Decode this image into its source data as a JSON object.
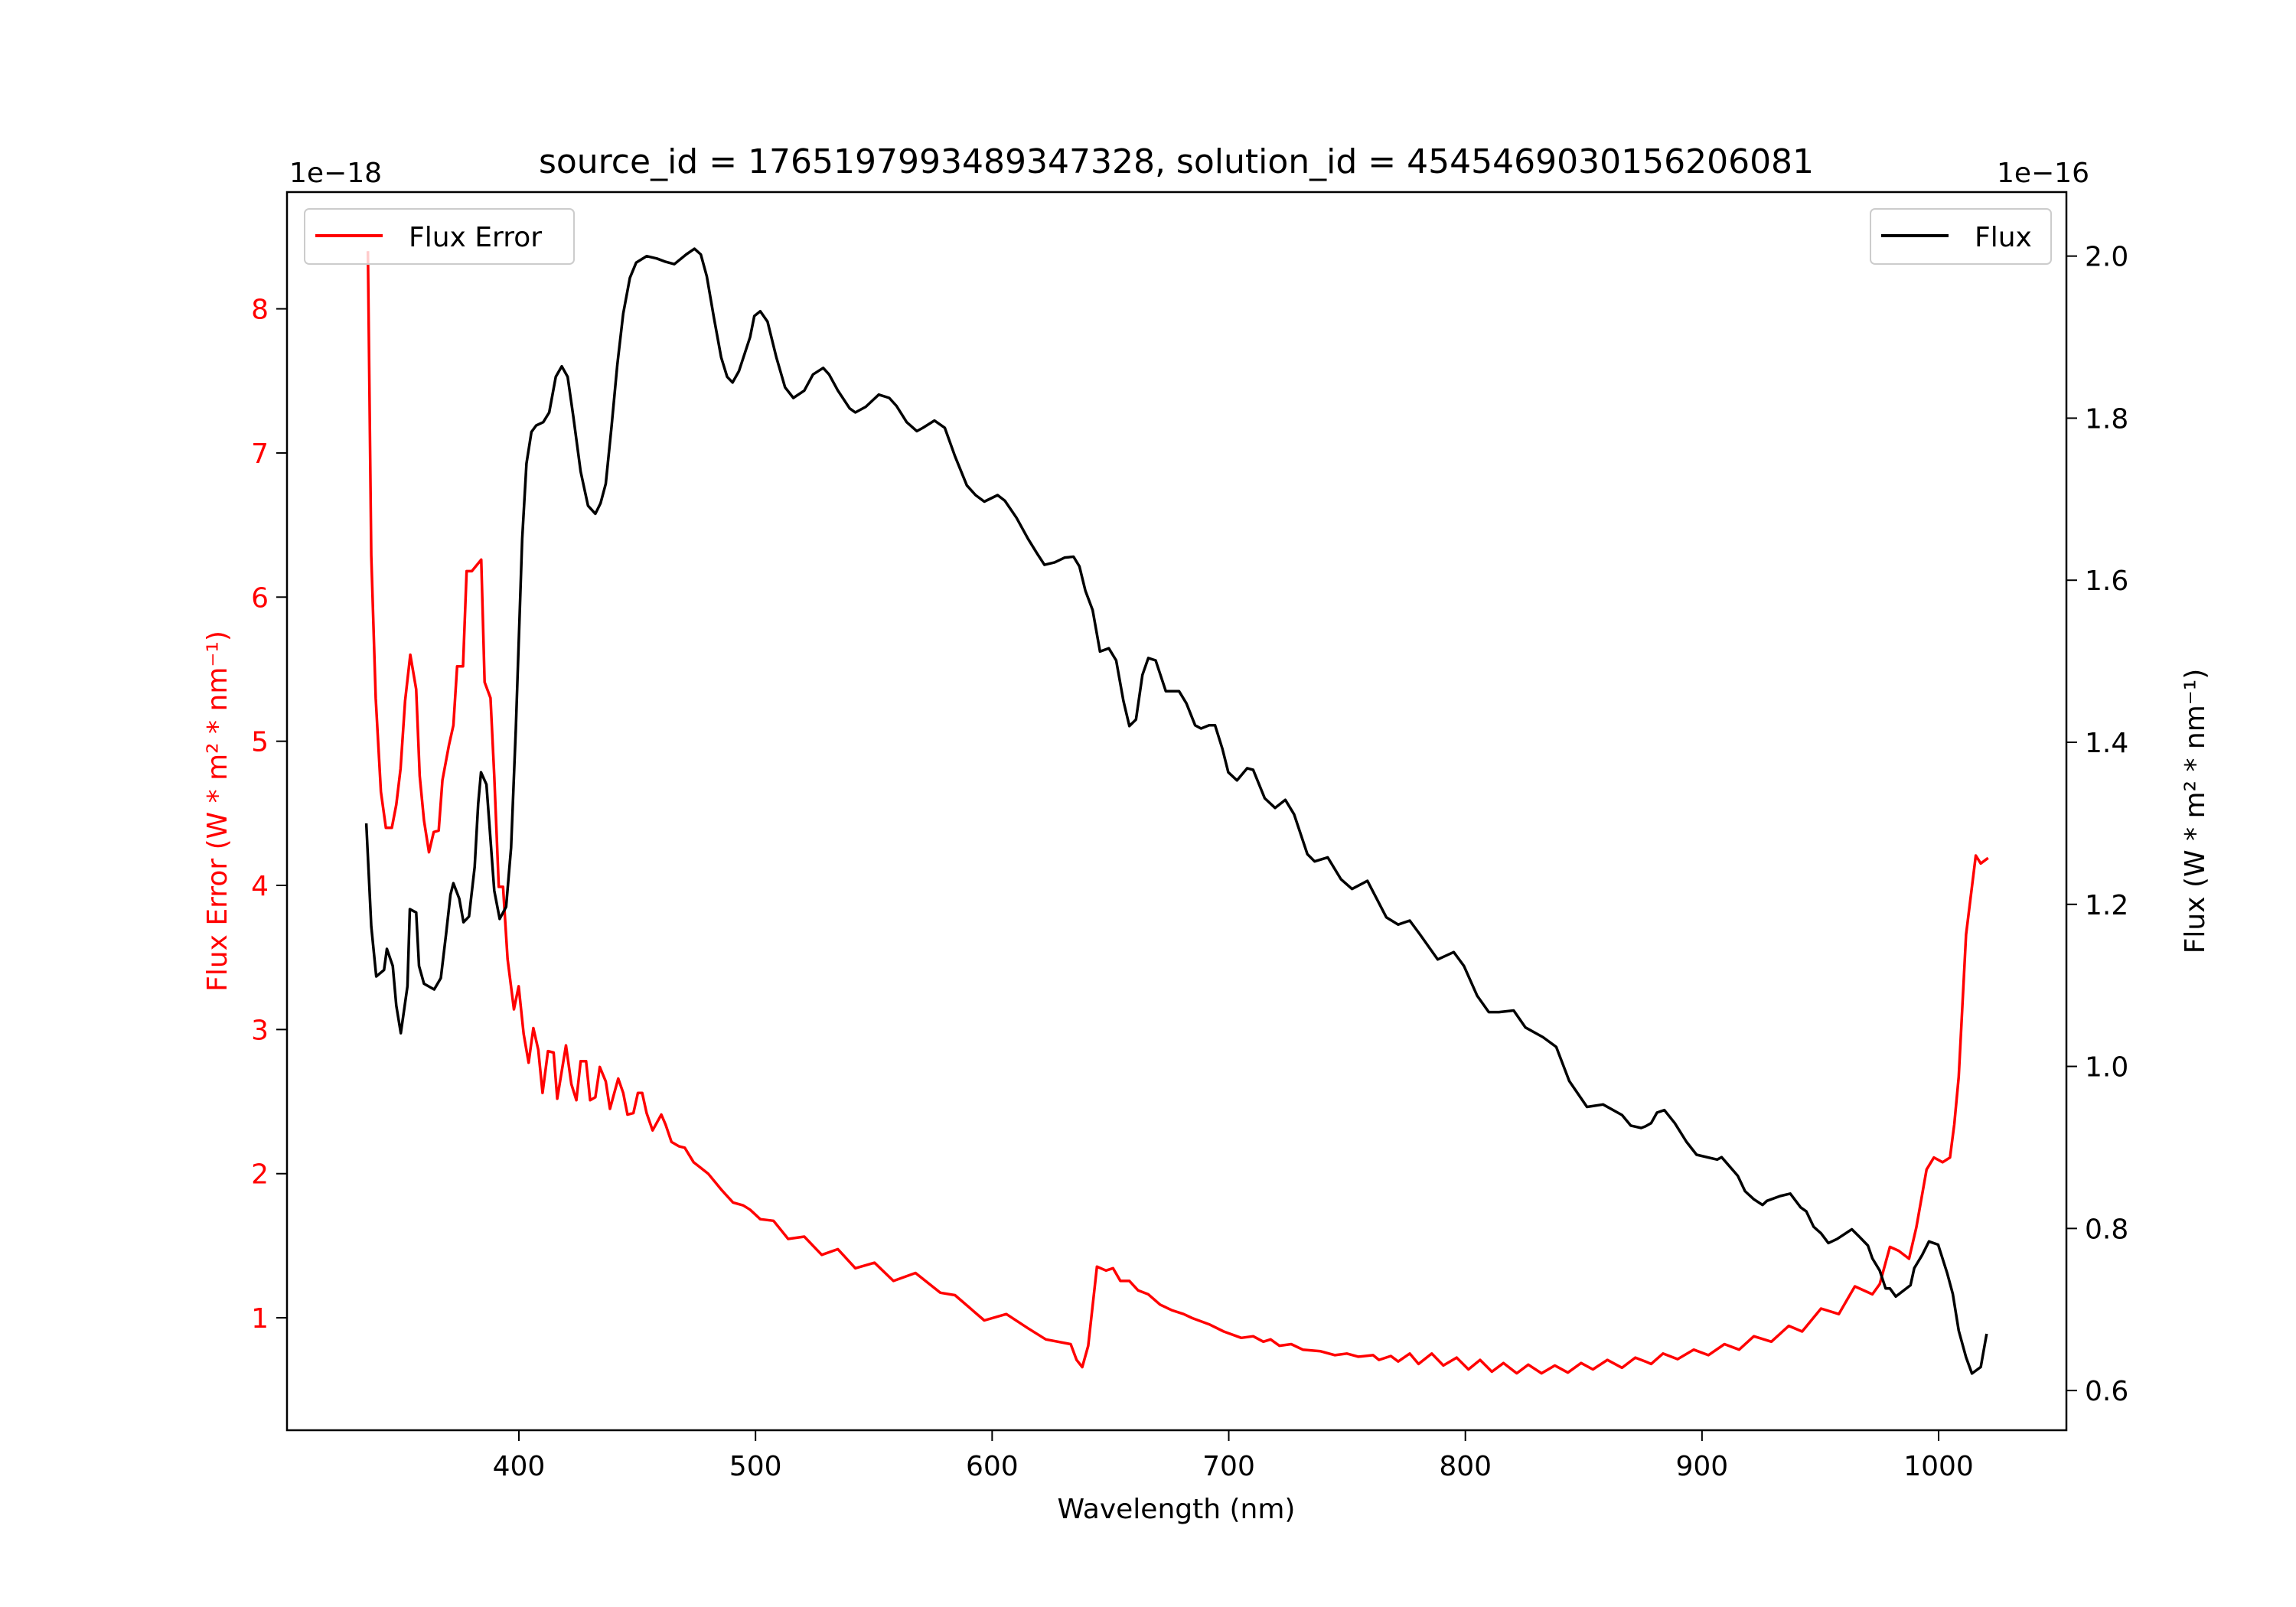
{
  "chart_data": {
    "type": "line",
    "title": "source_id = 1765197993489347328, solution_id = 4545469030156206081",
    "xlabel": "Wavelength (nm)",
    "ylabel_left": "Flux Error (W * m² * nm⁻¹)",
    "ylabel_right": "Flux (W * m² * nm⁻¹)",
    "offset_left": "1e−18",
    "offset_right": "1e−16",
    "xlim": [
      302,
      1054
    ],
    "ylim_left": [
      0.22,
      8.81
    ],
    "ylim_right": [
      0.551,
      2.079
    ],
    "xticks": [
      "400",
      "500",
      "600",
      "700",
      "800",
      "900",
      "1000"
    ],
    "yticks_left": [
      "1",
      "2",
      "3",
      "4",
      "5",
      "6",
      "7",
      "8"
    ],
    "yticks_right": [
      "0.6",
      "0.8",
      "1.0",
      "1.2",
      "1.4",
      "1.6",
      "1.8",
      "2.0"
    ],
    "grid": false,
    "legends": [
      {
        "label": "Flux Error",
        "placement": "upper-left",
        "color": "#ff0000"
      },
      {
        "label": "Flux",
        "placement": "upper-right",
        "color": "#000000"
      }
    ],
    "series": [
      {
        "name": "Flux Error",
        "axis": "left",
        "color": "#ff0000",
        "x": [
          336.2,
          337.6,
          339.5,
          341.7,
          343.8,
          346.3,
          348.2,
          350.0,
          351.9,
          354.1,
          356.6,
          358.1,
          359.9,
          362.0,
          364.0,
          366.1,
          367.7,
          370.4,
          372.3,
          373.9,
          376.4,
          377.9,
          380.1,
          384.1,
          385.5,
          388.0,
          389.6,
          391.5,
          393.3,
          395.2,
          397.9,
          399.9,
          402.0,
          404.1,
          406.1,
          408.2,
          410.0,
          412.3,
          414.7,
          416.2,
          419.9,
          422.2,
          424.3,
          426.1,
          428.4,
          430.1,
          432.3,
          434.2,
          436.7,
          438.5,
          442.0,
          444.1,
          445.9,
          448.4,
          450.3,
          452.1,
          454.0,
          456.5,
          460.2,
          462.0,
          464.5,
          467.6,
          470.1,
          473.8,
          480.0,
          485.5,
          490.5,
          494.8,
          497.7,
          502.0,
          507.6,
          513.8,
          520.6,
          528.0,
          534.8,
          542.2,
          550.3,
          558.3,
          567.6,
          578.1,
          584.3,
          596.7,
          606.0,
          615.2,
          622.7,
          633.2,
          635.7,
          638.1,
          640.6,
          644.3,
          648.1,
          651.1,
          654.2,
          658.0,
          661.7,
          666.0,
          671.0,
          675.9,
          680.9,
          684.6,
          691.7,
          697.9,
          705.3,
          710.3,
          714.6,
          717.7,
          721.4,
          726.4,
          731.3,
          738.8,
          744.9,
          749.9,
          754.8,
          761.0,
          763.5,
          768.5,
          771.6,
          776.5,
          780.2,
          785.8,
          790.7,
          796.3,
          801.3,
          806.2,
          811.2,
          816.1,
          821.7,
          826.6,
          832.2,
          837.8,
          843.3,
          848.9,
          853.9,
          860.0,
          866.2,
          871.8,
          876.1,
          878.5,
          883.5,
          889.7,
          896.5,
          902.7,
          909.5,
          915.7,
          921.9,
          929.3,
          936.7,
          942.3,
          950.3,
          957.8,
          964.6,
          972.0,
          975.1,
          979.4,
          983.1,
          987.5,
          990.6,
          994.9,
          998.0,
          1001.7,
          1004.8,
          1006.6,
          1008.5,
          1011.6,
          1015.7,
          1017.8,
          1020.9
        ],
        "values": [
          8.4,
          6.29,
          5.3,
          4.65,
          4.4,
          4.4,
          4.56,
          4.81,
          5.28,
          5.6,
          5.36,
          4.76,
          4.45,
          4.23,
          4.37,
          4.38,
          4.73,
          4.97,
          5.11,
          5.52,
          5.52,
          6.18,
          6.18,
          6.26,
          5.41,
          5.3,
          4.76,
          3.99,
          3.99,
          3.49,
          3.14,
          3.3,
          2.97,
          2.77,
          3.01,
          2.86,
          2.56,
          2.85,
          2.84,
          2.52,
          2.89,
          2.62,
          2.51,
          2.78,
          2.78,
          2.51,
          2.53,
          2.74,
          2.64,
          2.45,
          2.66,
          2.56,
          2.41,
          2.42,
          2.56,
          2.56,
          2.42,
          2.3,
          2.41,
          2.34,
          2.22,
          2.19,
          2.18,
          2.08,
          2.0,
          1.89,
          1.8,
          1.78,
          1.75,
          1.684,
          1.673,
          1.547,
          1.563,
          1.437,
          1.476,
          1.344,
          1.382,
          1.256,
          1.311,
          1.174,
          1.157,
          0.982,
          1.026,
          0.927,
          0.85,
          0.817,
          0.708,
          0.658,
          0.806,
          1.355,
          1.328,
          1.344,
          1.256,
          1.256,
          1.19,
          1.163,
          1.091,
          1.053,
          1.026,
          0.998,
          0.955,
          0.905,
          0.861,
          0.872,
          0.834,
          0.85,
          0.806,
          0.817,
          0.779,
          0.768,
          0.741,
          0.752,
          0.73,
          0.741,
          0.708,
          0.735,
          0.697,
          0.752,
          0.68,
          0.752,
          0.669,
          0.724,
          0.642,
          0.708,
          0.626,
          0.686,
          0.615,
          0.675,
          0.615,
          0.669,
          0.62,
          0.686,
          0.642,
          0.708,
          0.653,
          0.724,
          0.697,
          0.68,
          0.752,
          0.713,
          0.779,
          0.741,
          0.817,
          0.779,
          0.872,
          0.834,
          0.944,
          0.905,
          1.064,
          1.026,
          1.218,
          1.163,
          1.234,
          1.492,
          1.465,
          1.41,
          1.629,
          2.029,
          2.112,
          2.079,
          2.112,
          2.342,
          2.671,
          3.658,
          4.207,
          4.152,
          4.19
        ]
      },
      {
        "name": "Flux",
        "axis": "right",
        "color": "#000000",
        "x": [
          335.5,
          337.6,
          339.7,
          343.0,
          344.2,
          346.7,
          348.2,
          350.1,
          352.9,
          353.9,
          356.6,
          357.8,
          359.9,
          364.2,
          367.0,
          369.2,
          371.1,
          372.3,
          374.8,
          376.6,
          378.9,
          381.3,
          382.8,
          384.0,
          386.3,
          389.6,
          391.9,
          394.6,
          396.7,
          398.7,
          401.4,
          403.2,
          405.3,
          407.3,
          410.3,
          412.8,
          415.6,
          418.1,
          420.6,
          423.0,
          426.1,
          429.2,
          432.3,
          434.5,
          436.7,
          439.1,
          441.6,
          444.1,
          446.9,
          449.6,
          454.0,
          458.3,
          462.0,
          465.7,
          470.7,
          474.2,
          476.9,
          479.4,
          482.4,
          485.5,
          488.0,
          490.3,
          493.0,
          497.7,
          499.5,
          502.0,
          505.1,
          508.8,
          512.5,
          516.0,
          520.6,
          524.3,
          528.6,
          531.1,
          534.8,
          539.8,
          542.2,
          546.6,
          552.1,
          556.5,
          559.6,
          563.9,
          568.2,
          570.7,
          575.6,
          580.0,
          584.3,
          589.3,
          593.0,
          596.7,
          602.3,
          605.4,
          610.3,
          615.2,
          619.0,
          622.1,
          626.4,
          630.7,
          634.4,
          636.9,
          639.4,
          642.5,
          645.6,
          649.3,
          652.4,
          655.5,
          658.0,
          660.8,
          663.5,
          666.0,
          669.1,
          673.4,
          679.0,
          682.1,
          685.8,
          688.3,
          691.7,
          694.2,
          697.3,
          699.8,
          703.5,
          707.8,
          710.3,
          715.2,
          719.6,
          723.9,
          727.6,
          733.2,
          736.3,
          741.8,
          747.4,
          752.1,
          758.6,
          766.6,
          771.6,
          776.5,
          780.8,
          788.3,
          795.1,
          799.4,
          805.0,
          809.9,
          814.2,
          820.4,
          825.4,
          832.8,
          838.4,
          843.9,
          851.4,
          858.2,
          866.2,
          869.9,
          874.3,
          876.1,
          878.5,
          881.0,
          884.1,
          888.5,
          893.4,
          897.7,
          906.4,
          908.3,
          915.1,
          918.2,
          921.9,
          925.6,
          927.4,
          933.0,
          937.3,
          941.7,
          944.1,
          947.2,
          950.3,
          953.4,
          957.1,
          963.3,
          966.4,
          970.1,
          972.0,
          975.1,
          977.6,
          979.4,
          981.9,
          985.0,
          988.1,
          989.7,
          993.0,
          995.9,
          999.8,
          1003.6,
          1006.0,
          1008.5,
          1011.6,
          1014.1,
          1017.8,
          1020.3
        ],
        "values": [
          1.3,
          1.173,
          1.111,
          1.119,
          1.145,
          1.124,
          1.075,
          1.041,
          1.099,
          1.194,
          1.19,
          1.124,
          1.102,
          1.095,
          1.109,
          1.163,
          1.212,
          1.226,
          1.207,
          1.178,
          1.185,
          1.246,
          1.324,
          1.363,
          1.348,
          1.217,
          1.182,
          1.197,
          1.27,
          1.417,
          1.651,
          1.744,
          1.783,
          1.791,
          1.795,
          1.807,
          1.851,
          1.864,
          1.851,
          1.802,
          1.734,
          1.692,
          1.682,
          1.695,
          1.719,
          1.788,
          1.866,
          1.929,
          1.973,
          1.992,
          2.0,
          1.997,
          1.993,
          1.99,
          2.002,
          2.009,
          2.002,
          1.975,
          1.924,
          1.875,
          1.851,
          1.844,
          1.858,
          1.9,
          1.926,
          1.932,
          1.919,
          1.875,
          1.838,
          1.825,
          1.834,
          1.854,
          1.862,
          1.854,
          1.834,
          1.812,
          1.807,
          1.814,
          1.829,
          1.825,
          1.815,
          1.795,
          1.784,
          1.788,
          1.797,
          1.788,
          1.753,
          1.717,
          1.705,
          1.697,
          1.705,
          1.698,
          1.677,
          1.651,
          1.633,
          1.619,
          1.622,
          1.628,
          1.629,
          1.617,
          1.587,
          1.563,
          1.512,
          1.516,
          1.501,
          1.451,
          1.42,
          1.428,
          1.483,
          1.504,
          1.501,
          1.463,
          1.463,
          1.448,
          1.421,
          1.417,
          1.421,
          1.421,
          1.392,
          1.363,
          1.353,
          1.368,
          1.366,
          1.331,
          1.319,
          1.329,
          1.311,
          1.262,
          1.253,
          1.258,
          1.231,
          1.219,
          1.229,
          1.184,
          1.175,
          1.18,
          1.163,
          1.132,
          1.141,
          1.124,
          1.087,
          1.067,
          1.067,
          1.069,
          1.048,
          1.036,
          1.024,
          0.982,
          0.95,
          0.953,
          0.94,
          0.927,
          0.924,
          0.926,
          0.93,
          0.943,
          0.946,
          0.93,
          0.907,
          0.891,
          0.885,
          0.888,
          0.865,
          0.846,
          0.836,
          0.829,
          0.834,
          0.84,
          0.843,
          0.826,
          0.821,
          0.802,
          0.794,
          0.782,
          0.787,
          0.799,
          0.79,
          0.779,
          0.763,
          0.748,
          0.726,
          0.726,
          0.716,
          0.723,
          0.73,
          0.751,
          0.767,
          0.784,
          0.78,
          0.745,
          0.719,
          0.674,
          0.641,
          0.621,
          0.629,
          0.67
        ]
      }
    ]
  }
}
